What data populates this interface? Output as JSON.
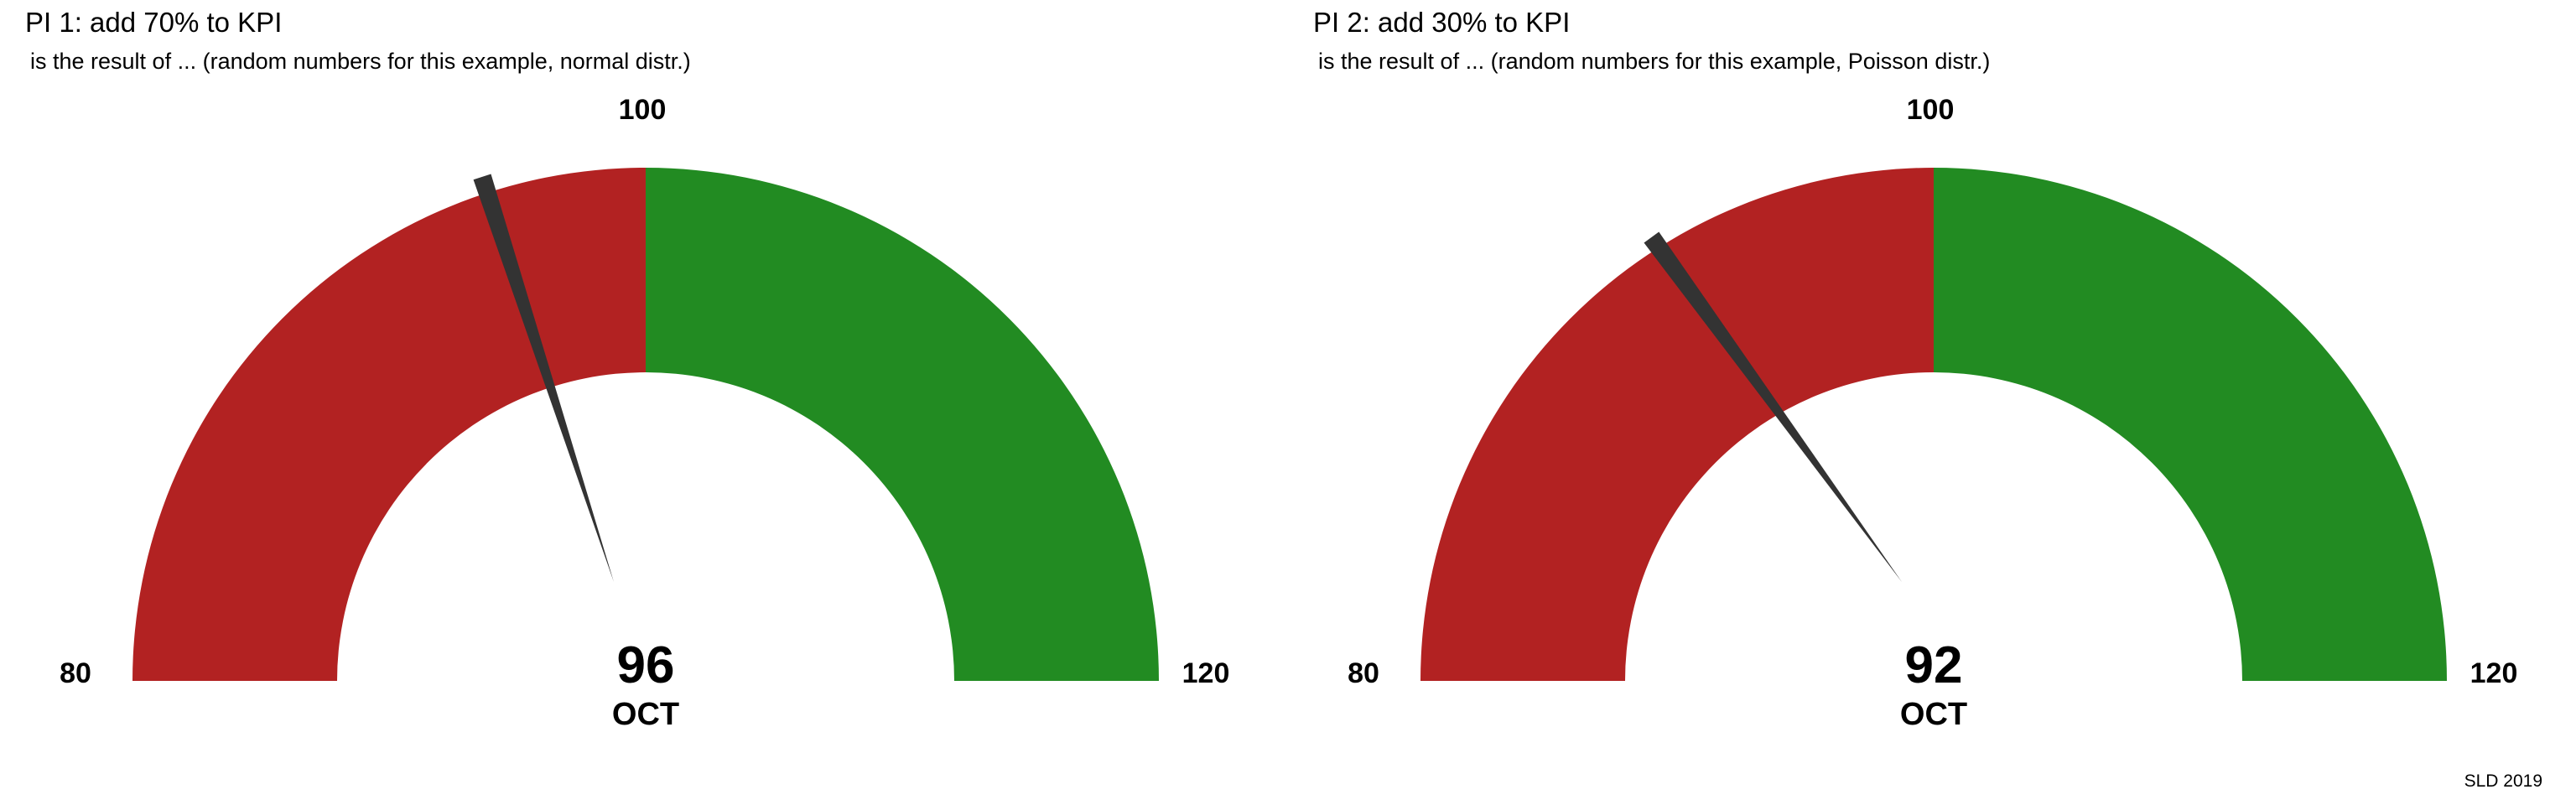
{
  "chart_data": [
    {
      "type": "gauge",
      "title": "PI 1: add 70% to KPI",
      "subtitle": "is the result of ... (random numbers for this example, normal distr.)",
      "min": 80,
      "max": 120,
      "target": 100,
      "value": 96,
      "value_label": "96",
      "period": "OCT",
      "scale_labels": {
        "min": "80",
        "mid": "100",
        "max": "120"
      },
      "bands": [
        {
          "from": 80,
          "to": 100,
          "color": "#b22222"
        },
        {
          "from": 100,
          "to": 120,
          "color": "#228b22"
        }
      ],
      "needle_color": "#333333"
    },
    {
      "type": "gauge",
      "title": "PI 2: add 30% to KPI",
      "subtitle": "is the result of ... (random numbers for this example, Poisson distr.)",
      "min": 80,
      "max": 120,
      "target": 100,
      "value": 92,
      "value_label": "92",
      "period": "OCT",
      "scale_labels": {
        "min": "80",
        "mid": "100",
        "max": "120"
      },
      "bands": [
        {
          "from": 80,
          "to": 100,
          "color": "#b22222"
        },
        {
          "from": 100,
          "to": 120,
          "color": "#228b22"
        }
      ],
      "needle_color": "#333333"
    }
  ],
  "footer": {
    "caption": "SLD 2019"
  }
}
